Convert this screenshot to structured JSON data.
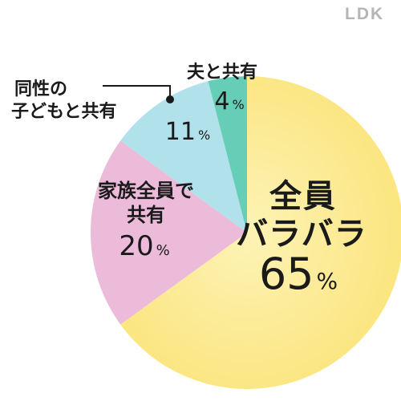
{
  "brand": {
    "logo_text": "LDK"
  },
  "chart_data": {
    "type": "pie",
    "start_angle_deg": 0,
    "direction": "clockwise",
    "slices": [
      {
        "label_lines": [
          "全員",
          "バラバラ"
        ],
        "value": 65,
        "value_text": "65",
        "unit": "%",
        "color": "#fbe57a"
      },
      {
        "label_lines": [
          "家族全員で",
          "共有"
        ],
        "value": 20,
        "value_text": "20",
        "unit": "%",
        "color": "#ebbbd9"
      },
      {
        "label_lines": [
          "同性の",
          "子どもと共有"
        ],
        "value": 11,
        "value_text": "11",
        "unit": "%",
        "color": "#b1e1ea"
      },
      {
        "label_lines": [
          "夫と共有"
        ],
        "value": 4,
        "value_text": "4",
        "unit": "%",
        "color": "#66cdb6"
      }
    ]
  }
}
